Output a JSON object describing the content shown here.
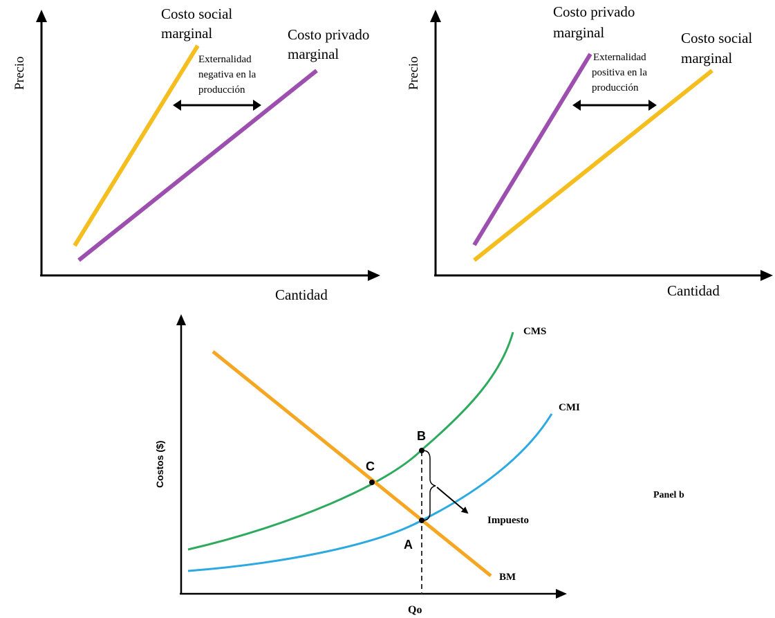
{
  "colors": {
    "social_yellow": "#F4BE1E",
    "private_purple": "#9C4FAE",
    "cms_green": "#2DAA5E",
    "cmp_blue": "#2BA9E1",
    "bm_orange": "#F5A623",
    "axis": "#000000"
  },
  "panel_left": {
    "y_label": "Precio",
    "x_label": "Cantidad",
    "steep_line_label_1": "Costo social",
    "steep_line_label_2": "marginal",
    "flat_line_label_1": "Costo privado",
    "flat_line_label_2": "marginal",
    "annotation_1": "Externalidad",
    "annotation_2": "negativa en la",
    "annotation_3": "producción"
  },
  "panel_right": {
    "y_label": "Precio",
    "x_label": "Cantidad",
    "steep_line_label_1": "Costo privado",
    "steep_line_label_2": "marginal",
    "flat_line_label_1": "Costo social",
    "flat_line_label_2": "marginal",
    "annotation_1": "Externalidad",
    "annotation_2": "positiva en la",
    "annotation_3": "producción"
  },
  "panel_bottom": {
    "y_label": "Costos ($)",
    "x_tick": "Qo",
    "cms_label": "CMS",
    "cmp_label": "CMI",
    "bm_label": "BM",
    "point_b": "B",
    "point_c": "C",
    "point_a": "A",
    "tax_label": "Impuesto",
    "panel_label": "Panel b"
  }
}
